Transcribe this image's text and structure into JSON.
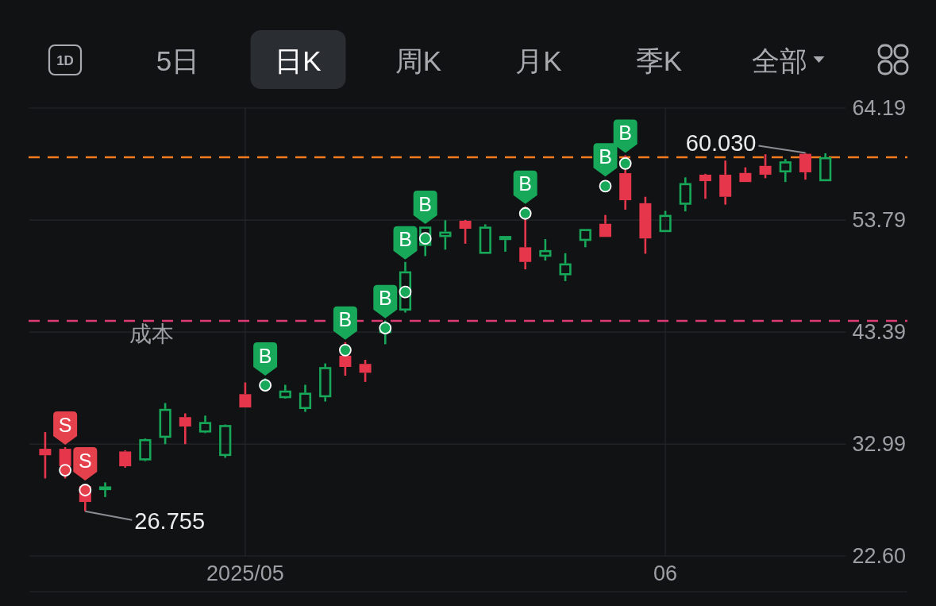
{
  "chart_data": {
    "type": "candlestick",
    "annotations": [
      "1D",
      "5日",
      "日K",
      "周K",
      "月K",
      "季K",
      "全部"
    ],
    "categories": [
      null,
      null,
      null,
      null,
      null,
      null,
      null,
      null,
      null,
      null,
      "2025/05",
      null,
      null,
      null,
      null,
      null,
      null,
      null,
      null,
      null,
      null,
      null,
      null,
      null,
      null,
      null,
      null,
      null,
      null,
      null,
      null,
      "06",
      null,
      null,
      null,
      null,
      null,
      null,
      null,
      null
    ],
    "ohlc": [
      [
        32.55,
        34.1,
        29.8,
        31.95
      ],
      [
        32.55,
        32.7,
        29.8,
        30.93
      ],
      [
        29.09,
        29.2,
        26.755,
        27.61
      ],
      [
        28.72,
        29.43,
        28.07,
        29.05
      ],
      [
        32.3,
        32.4,
        30.8,
        30.93
      ],
      [
        31.48,
        33.5,
        31.4,
        33.44
      ],
      [
        33.58,
        36.8,
        32.98,
        36.25
      ],
      [
        35.49,
        35.84,
        32.98,
        34.62
      ],
      [
        34.07,
        35.63,
        34.0,
        35.03
      ],
      [
        31.89,
        34.8,
        31.72,
        34.75
      ],
      [
        37.62,
        38.71,
        36.39,
        36.39
      ],
      [
        38.3,
        39.1,
        37.86,
        38.5
      ],
      [
        37.26,
        38.49,
        37.2,
        37.95
      ],
      [
        36.25,
        38.49,
        35.98,
        37.75
      ],
      [
        37.34,
        40.48,
        36.94,
        40.13
      ],
      [
        41.19,
        42.45,
        39.34,
        40.15
      ],
      [
        40.43,
        40.81,
        38.76,
        39.61
      ],
      [
        43.3,
        44.45,
        42.26,
        44.0
      ],
      [
        45.39,
        49.9,
        45.2,
        49.02
      ],
      [
        51.4,
        53.2,
        50.44,
        53.17
      ],
      [
        52.22,
        53.77,
        51.04,
        52.71
      ],
      [
        53.72,
        53.8,
        51.59,
        52.98
      ],
      [
        50.66,
        53.39,
        50.66,
        53.17
      ],
      [
        51.94,
        52.3,
        50.85,
        52.3
      ],
      [
        51.26,
        55.05,
        49.21,
        49.9
      ],
      [
        50.39,
        52.02,
        50.03,
        50.99
      ],
      [
        48.67,
        50.71,
        48.12,
        49.76
      ],
      [
        51.86,
        52.95,
        51.26,
        52.95
      ],
      [
        53.44,
        54.26,
        52.22,
        52.22
      ],
      [
        58.14,
        59.8,
        54.75,
        55.63
      ],
      [
        55.35,
        55.95,
        50.66,
        52.08
      ],
      [
        52.68,
        54.64,
        52.68,
        54.26
      ],
      [
        55.22,
        57.75,
        54.59,
        57.21
      ],
      [
        58.0,
        58.08,
        55.76,
        57.4
      ],
      [
        58.0,
        59.31,
        55.22,
        55.95
      ],
      [
        58.16,
        58.68,
        57.3,
        57.32
      ],
      [
        58.82,
        59.9,
        57.67,
        58.0
      ],
      [
        58.22,
        59.45,
        57.32,
        59.23
      ],
      [
        59.94,
        60.03,
        57.54,
        58.22
      ],
      [
        57.4,
        59.99,
        57.4,
        59.62
      ]
    ],
    "value_labels": [
      null,
      null,
      "26.755",
      null,
      null,
      null,
      null,
      null,
      null,
      null,
      null,
      null,
      null,
      null,
      null,
      null,
      null,
      null,
      null,
      null,
      null,
      null,
      null,
      null,
      null,
      null,
      null,
      null,
      null,
      null,
      null,
      null,
      null,
      null,
      null,
      null,
      null,
      null,
      "60.030",
      null
    ],
    "colors": [
      "#e5364b",
      "#e5364b",
      "#e5364b",
      "#17a85a",
      "#e5364b",
      "#17a85a",
      "#17a85a",
      "#e5364b",
      "#17a85a",
      "#17a85a",
      "#e5364b",
      "#17a85a",
      "#17a85a",
      "#17a85a",
      "#17a85a",
      "#e5364b",
      "#e5364b",
      "#17a85a",
      "#17a85a",
      "#17a85a",
      "#17a85a",
      "#e5364b",
      "#17a85a",
      "#17a85a",
      "#e5364b",
      "#17a85a",
      "#17a85a",
      "#17a85a",
      "#e5364b",
      "#e5364b",
      "#e5364b",
      "#17a85a",
      "#17a85a",
      "#e5364b",
      "#e5364b",
      "#e5364b",
      "#e5364b",
      "#17a85a",
      "#e5364b",
      "#17a85a"
    ],
    "ylim": [
      22.6,
      64.19
    ],
    "yticks": [
      64.19,
      53.79,
      43.39,
      32.99,
      {
        "value": 22.6,
        "label": "22.60"
      }
    ],
    "grid": true,
    "marker": "circle",
    "ref_lines": [
      {
        "axis": "y",
        "value": 59.62,
        "color": "#f57c1f",
        "line_style": "dashed"
      },
      {
        "axis": "y",
        "value": 44.43,
        "label": "成本",
        "color": "#dc3a72",
        "line_style": "dashed"
      }
    ],
    "series": [
      {
        "type": "scatter",
        "color": "#e5414d",
        "values": [
          null,
          30.56,
          28.72,
          null,
          null,
          null,
          null,
          null,
          null,
          null,
          null,
          null,
          null,
          null,
          null,
          null,
          null,
          null,
          null,
          null,
          null,
          null,
          null,
          null,
          null,
          null,
          null,
          null,
          null,
          null,
          null,
          null,
          null,
          null,
          null,
          null,
          null,
          null,
          null,
          null
        ],
        "value_labels": [
          null,
          "S",
          "S",
          null,
          null,
          null,
          null,
          null,
          null,
          null,
          null,
          null,
          null,
          null,
          null,
          null,
          null,
          null,
          null,
          null,
          null,
          null,
          null,
          null,
          null,
          null,
          null,
          null,
          null,
          null,
          null,
          null,
          null,
          null,
          null,
          null,
          null,
          null,
          null,
          null
        ]
      },
      {
        "type": "scatter",
        "color": "#17a85a",
        "values": [
          null,
          null,
          null,
          null,
          null,
          null,
          null,
          null,
          null,
          null,
          null,
          38.45,
          null,
          null,
          null,
          41.71,
          null,
          43.76,
          47.11,
          52.08,
          null,
          null,
          null,
          null,
          54.4,
          null,
          null,
          null,
          56.94,
          59.04,
          null,
          null,
          null,
          null,
          null,
          null,
          null,
          null,
          null,
          null
        ],
        "value_labels": [
          null,
          null,
          null,
          null,
          null,
          null,
          null,
          null,
          null,
          null,
          null,
          "B",
          null,
          null,
          null,
          "B",
          null,
          "B",
          "B",
          "B",
          null,
          null,
          null,
          null,
          "B",
          null,
          null,
          null,
          "B",
          "B",
          null,
          null,
          null,
          null,
          null,
          null,
          null,
          null,
          null,
          null
        ]
      }
    ]
  }
}
